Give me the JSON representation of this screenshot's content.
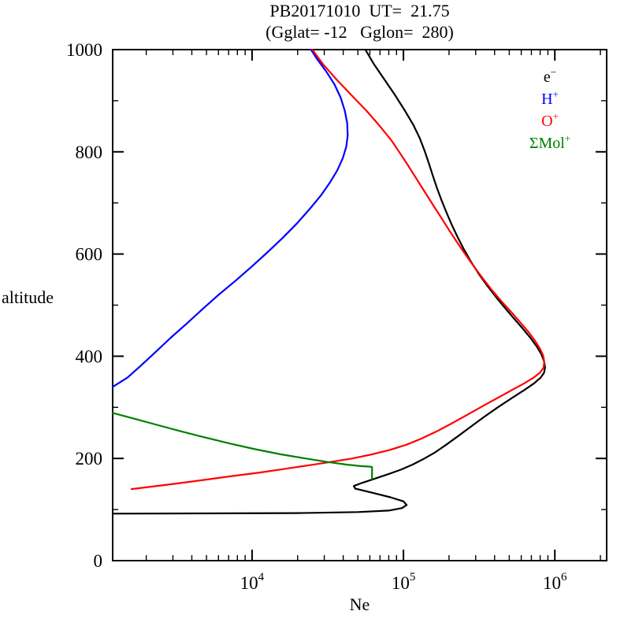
{
  "chart_data": {
    "type": "line",
    "title": "PB20171010  UT=  21.75",
    "subtitle": "(Gglat= -12   Gglon=  280)",
    "xlabel": "Ne",
    "ylabel": "altitude",
    "xscale": "log",
    "yscale": "linear",
    "xlim": [
      1200,
      2200000
    ],
    "ylim": [
      0,
      1000
    ],
    "grid": false,
    "legend_position": "top-right-inside",
    "x_ticks": [
      {
        "value": 10000,
        "base": "10",
        "exp": "4"
      },
      {
        "value": 100000,
        "base": "10",
        "exp": "5"
      },
      {
        "value": 1000000,
        "base": "10",
        "exp": "6"
      }
    ],
    "y_ticks": [
      0,
      200,
      400,
      600,
      800,
      1000
    ],
    "y_minor_step": 100,
    "series": [
      {
        "id": "electron",
        "name": "e-",
        "legend_base": "e",
        "legend_sup": "−",
        "color": "#000000",
        "points": [
          [
            1200,
            92
          ],
          [
            20000,
            93
          ],
          [
            50000,
            95
          ],
          [
            80000,
            98
          ],
          [
            98000,
            103
          ],
          [
            105000,
            109
          ],
          [
            100000,
            116
          ],
          [
            82000,
            124
          ],
          [
            62000,
            133
          ],
          [
            48000,
            141
          ],
          [
            47000,
            146
          ],
          [
            53000,
            152
          ],
          [
            64000,
            160
          ],
          [
            79000,
            169
          ],
          [
            96000,
            178
          ],
          [
            115000,
            188
          ],
          [
            136000,
            199
          ],
          [
            160000,
            211
          ],
          [
            190000,
            226
          ],
          [
            228000,
            243
          ],
          [
            278000,
            262
          ],
          [
            340000,
            281
          ],
          [
            420000,
            300
          ],
          [
            520000,
            318
          ],
          [
            630000,
            334
          ],
          [
            730000,
            347
          ],
          [
            805000,
            358
          ],
          [
            850000,
            368
          ],
          [
            862000,
            378
          ],
          [
            850000,
            390
          ],
          [
            815000,
            404
          ],
          [
            760000,
            419
          ],
          [
            690000,
            436
          ],
          [
            615000,
            454
          ],
          [
            540000,
            473
          ],
          [
            470000,
            494
          ],
          [
            408000,
            516
          ],
          [
            356000,
            539
          ],
          [
            313000,
            562
          ],
          [
            278000,
            586
          ],
          [
            250000,
            610
          ],
          [
            227000,
            634
          ],
          [
            208000,
            658
          ],
          [
            192000,
            682
          ],
          [
            178000,
            706
          ],
          [
            166000,
            730
          ],
          [
            156000,
            754
          ],
          [
            147000,
            778
          ],
          [
            138000,
            802
          ],
          [
            128000,
            827
          ],
          [
            116000,
            853
          ],
          [
            102000,
            881
          ],
          [
            88000,
            911
          ],
          [
            75000,
            941
          ],
          [
            64000,
            971
          ],
          [
            56000,
            1000
          ]
        ]
      },
      {
        "id": "h-plus",
        "name": "H+",
        "legend_base": "H",
        "legend_sup": "+",
        "color": "#0000ff",
        "points": [
          [
            1200,
            340
          ],
          [
            1500,
            358
          ],
          [
            1850,
            382
          ],
          [
            2300,
            408
          ],
          [
            2900,
            436
          ],
          [
            3700,
            464
          ],
          [
            4700,
            492
          ],
          [
            6000,
            520
          ],
          [
            7800,
            548
          ],
          [
            10000,
            576
          ],
          [
            12700,
            604
          ],
          [
            16000,
            632
          ],
          [
            19800,
            660
          ],
          [
            24000,
            688
          ],
          [
            28400,
            714
          ],
          [
            32700,
            740
          ],
          [
            36600,
            764
          ],
          [
            39800,
            788
          ],
          [
            41900,
            810
          ],
          [
            42800,
            832
          ],
          [
            42500,
            856
          ],
          [
            41000,
            880
          ],
          [
            38500,
            906
          ],
          [
            35000,
            932
          ],
          [
            30800,
            958
          ],
          [
            26800,
            982
          ],
          [
            24500,
            1000
          ]
        ]
      },
      {
        "id": "o-plus",
        "name": "O+",
        "legend_base": "O",
        "legend_sup": "+",
        "color": "#ff0000",
        "points": [
          [
            1600,
            140
          ],
          [
            2200,
            145
          ],
          [
            3200,
            151
          ],
          [
            4800,
            158
          ],
          [
            7200,
            165
          ],
          [
            11000,
            172
          ],
          [
            16000,
            179
          ],
          [
            23000,
            186
          ],
          [
            33000,
            193
          ],
          [
            46000,
            200
          ],
          [
            62000,
            208
          ],
          [
            82000,
            217
          ],
          [
            105000,
            227
          ],
          [
            132000,
            239
          ],
          [
            166000,
            253
          ],
          [
            210000,
            269
          ],
          [
            266000,
            286
          ],
          [
            336000,
            303
          ],
          [
            422000,
            319
          ],
          [
            522000,
            334
          ],
          [
            628000,
            347
          ],
          [
            723000,
            358
          ],
          [
            798000,
            368
          ],
          [
            843000,
            378
          ],
          [
            852000,
            389
          ],
          [
            838000,
            401
          ],
          [
            800000,
            414
          ],
          [
            745000,
            429
          ],
          [
            676000,
            446
          ],
          [
            600000,
            464
          ],
          [
            524000,
            484
          ],
          [
            452000,
            505
          ],
          [
            390000,
            527
          ],
          [
            339000,
            550
          ],
          [
            295000,
            574
          ],
          [
            258000,
            598
          ],
          [
            227000,
            622
          ],
          [
            200000,
            647
          ],
          [
            177000,
            672
          ],
          [
            156000,
            697
          ],
          [
            138000,
            722
          ],
          [
            122000,
            747
          ],
          [
            108000,
            772
          ],
          [
            95000,
            797
          ],
          [
            83000,
            823
          ],
          [
            70000,
            850
          ],
          [
            57500,
            879
          ],
          [
            46000,
            909
          ],
          [
            36500,
            940
          ],
          [
            29500,
            971
          ],
          [
            25000,
            1000
          ]
        ]
      },
      {
        "id": "mol-plus",
        "name": "ΣMol+",
        "legend_base": "ΣMol",
        "legend_sup": "+",
        "color": "#008000",
        "points": [
          [
            1200,
            289
          ],
          [
            1700,
            277
          ],
          [
            2400,
            265
          ],
          [
            3400,
            253
          ],
          [
            4900,
            241
          ],
          [
            7200,
            229
          ],
          [
            10500,
            218
          ],
          [
            15500,
            208
          ],
          [
            22500,
            200
          ],
          [
            31500,
            193
          ],
          [
            42000,
            188
          ],
          [
            52000,
            185
          ],
          [
            60000,
            184
          ],
          [
            62000,
            183
          ],
          [
            62000,
            160
          ]
        ]
      }
    ]
  }
}
